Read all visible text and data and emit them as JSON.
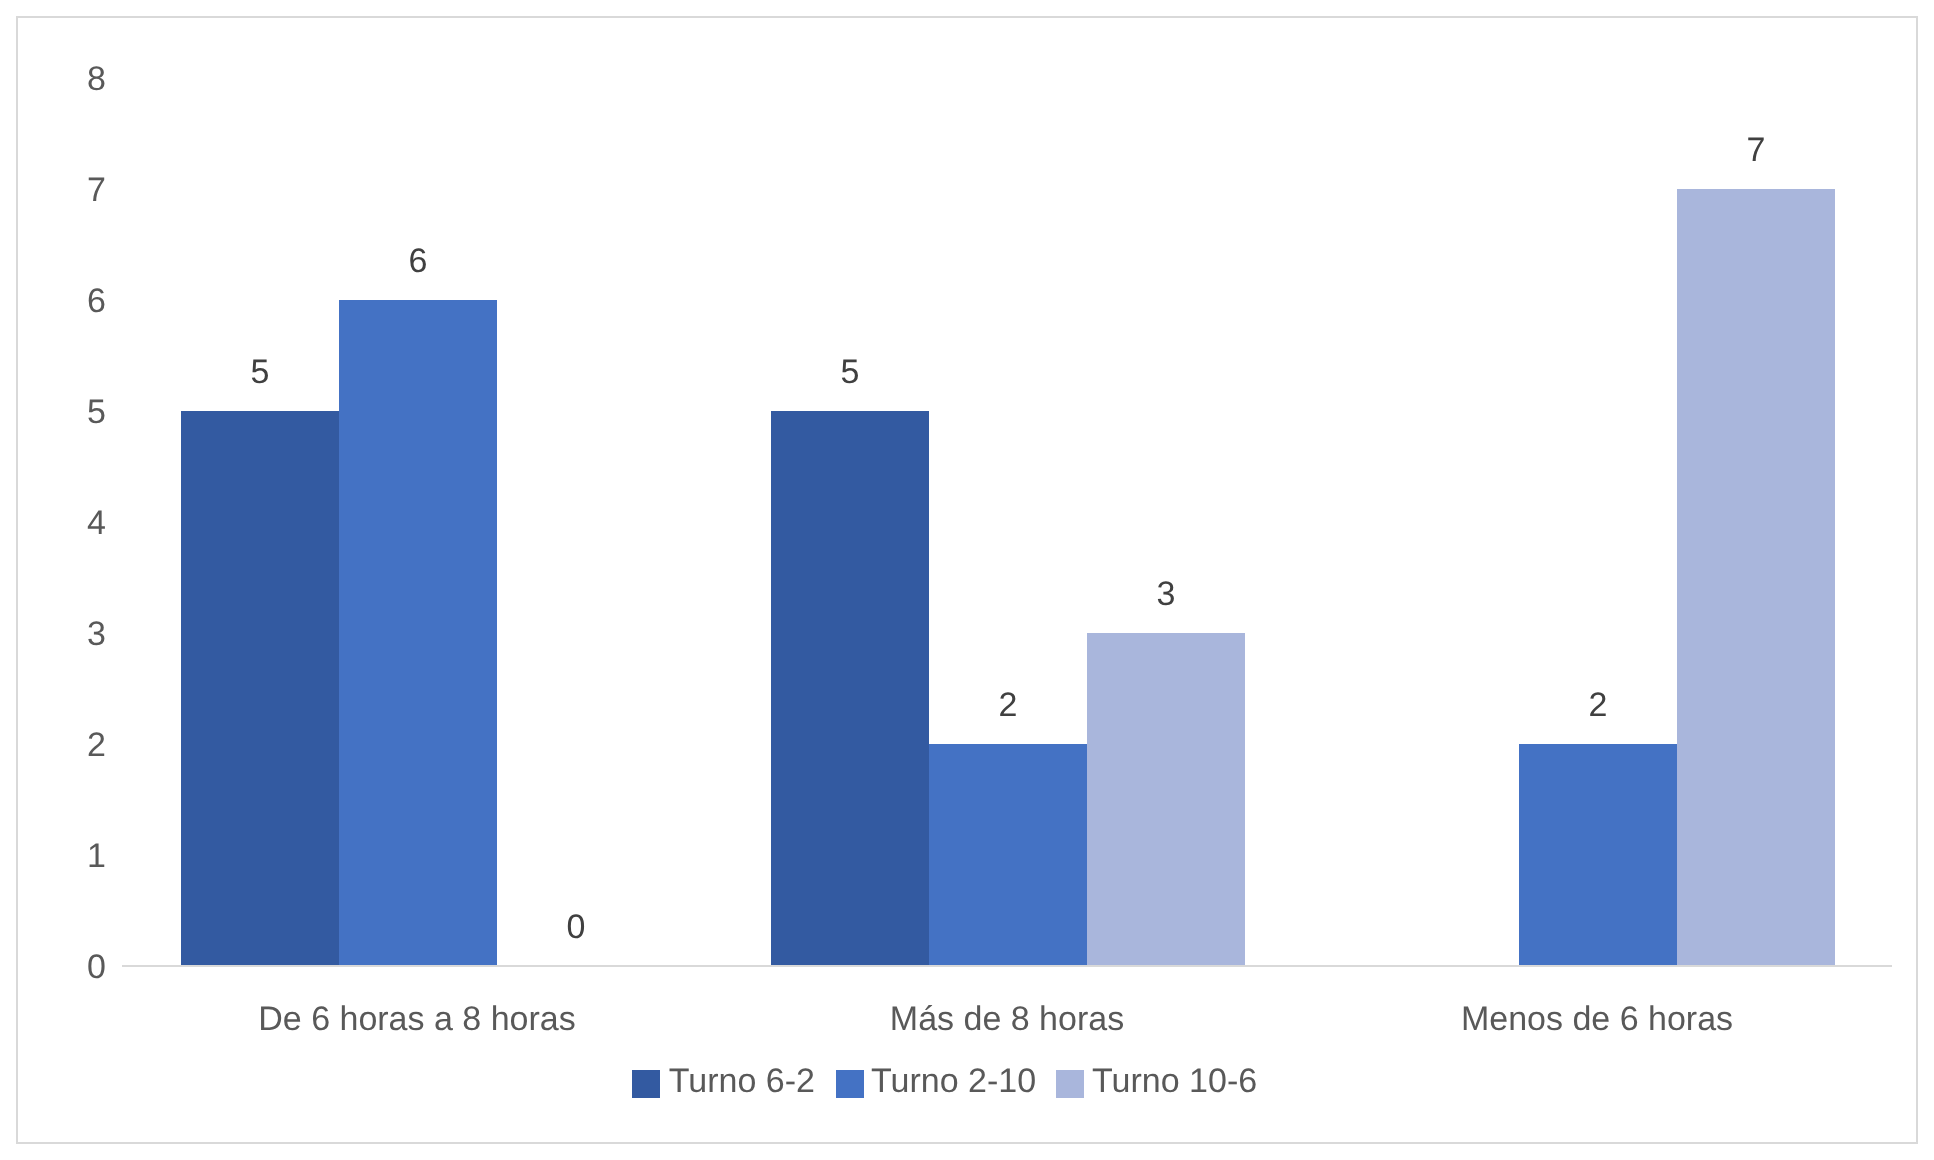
{
  "chart_data": {
    "type": "bar",
    "categories": [
      "De 6 horas a 8 horas",
      "Más de 8 horas",
      "Menos de 6 horas"
    ],
    "series": [
      {
        "name": "Turno 6-2",
        "color": "#335aa1",
        "values": [
          5,
          5,
          null
        ]
      },
      {
        "name": "Turno 2-10",
        "color": "#4472c4",
        "values": [
          6,
          2,
          2
        ]
      },
      {
        "name": "Turno 10-6",
        "color": "#a9b6dc",
        "values": [
          0,
          3,
          7
        ]
      }
    ],
    "ylim": [
      0,
      8
    ],
    "yticks": [
      0,
      1,
      2,
      3,
      4,
      5,
      6,
      7,
      8
    ],
    "grid": false,
    "legend": "bottom",
    "data_labels": true
  }
}
